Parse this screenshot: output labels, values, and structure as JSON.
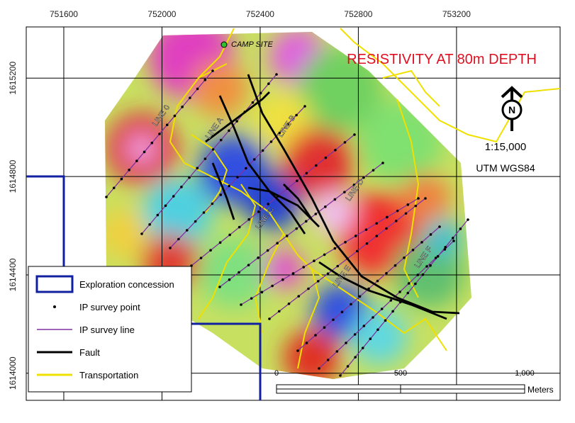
{
  "map_data": {
    "title": "RESISTIVITY AT 80m DEPTH",
    "camp_label": "CAMP SITE",
    "north_label": "N",
    "scale_text": "1:15,000",
    "projection": "UTM WGS84",
    "xlim": [
      751447,
      753622
    ],
    "ylim": [
      1613890,
      1615408
    ],
    "xticks": [
      751600,
      752000,
      752400,
      752800,
      753200
    ],
    "yticks": [
      1614000,
      1614400,
      1614800,
      1615200
    ],
    "line_labels": [
      "LINE 0",
      "LINE A",
      "LINE B",
      "LINE C",
      "LINE D",
      "LINE E",
      "LINE F"
    ],
    "legend": [
      "Exploration concession",
      "IP survey point",
      "IP survey line",
      "Fault",
      "Transportation"
    ],
    "scale_bar": {
      "labels": [
        "0",
        "500",
        "1,000"
      ],
      "unit": "Meters"
    }
  }
}
